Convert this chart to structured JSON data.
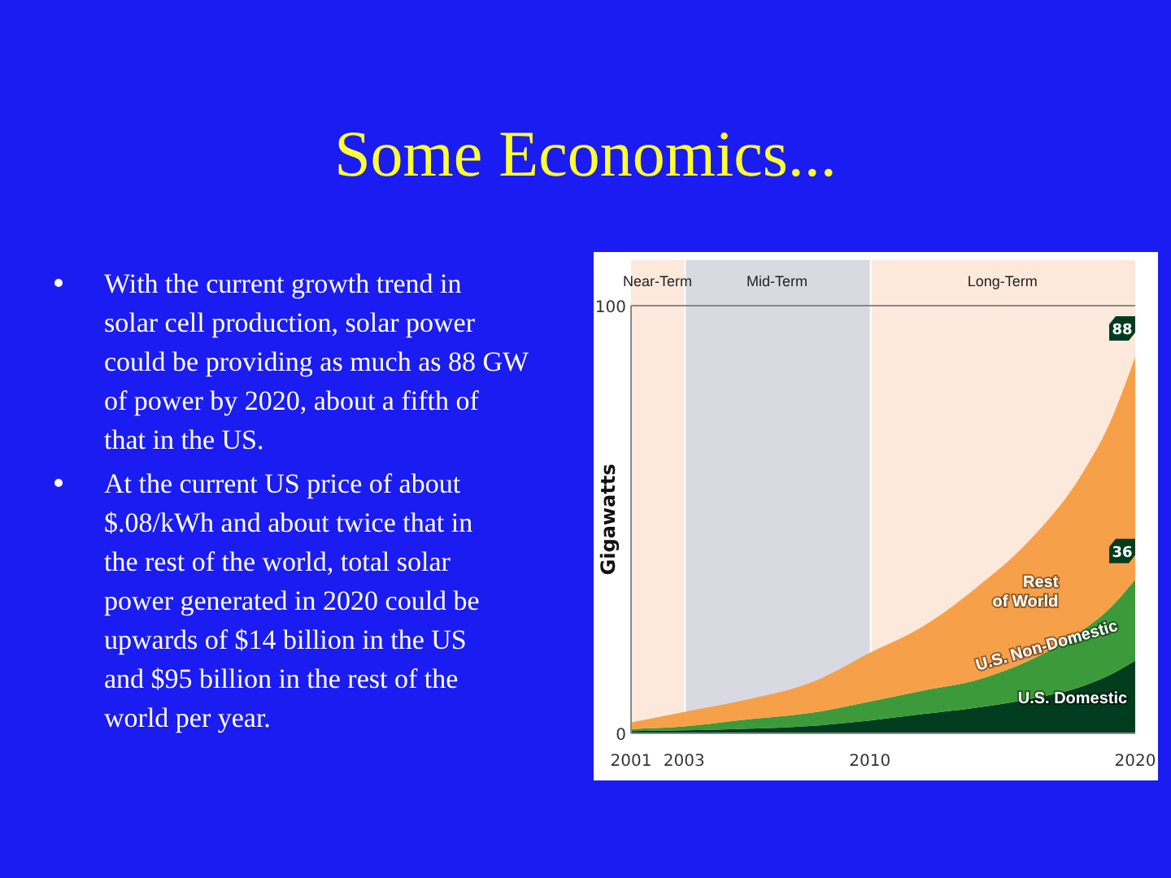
{
  "chart_data": {
    "type": "area",
    "stacked": true,
    "title": "Some Economics...",
    "ylabel": "Gigawatts",
    "x": [
      2001,
      2003,
      2005,
      2008,
      2010,
      2012,
      2014,
      2016,
      2018,
      2019,
      2020
    ],
    "xlim": [
      2001,
      2020
    ],
    "xticks": [
      2001,
      2003,
      2010,
      2020
    ],
    "ylim": [
      0,
      100
    ],
    "yticks": [
      0,
      100
    ],
    "grid": false,
    "legend": false,
    "series": [
      {
        "name": "U.S. Domestic",
        "color": "#003d1f",
        "values": [
          0.5,
          0.7,
          1,
          1.8,
          3,
          4.5,
          6,
          8,
          11,
          13.5,
          17
        ]
      },
      {
        "name": "U.S. Non-Domestic",
        "color": "#3d9a3a",
        "values": [
          0.5,
          0.9,
          2,
          3.2,
          4.4,
          5.5,
          6.4,
          9,
          13,
          15.5,
          19
        ]
      },
      {
        "name": "Rest of World",
        "color": "#f7a04a",
        "values": [
          1.5,
          3.4,
          4.4,
          7.4,
          11.4,
          15,
          21.6,
          28,
          36.7,
          43,
          52
        ]
      }
    ],
    "bands": [
      {
        "axis": "x",
        "from": 2001,
        "to": 2003,
        "label": "Near-Term",
        "color": "#fde8dc"
      },
      {
        "axis": "x",
        "from": 2003,
        "to": 2010,
        "label": "Mid-Term",
        "color": "#d9d9e2"
      },
      {
        "axis": "x",
        "from": 2010,
        "to": 2020,
        "label": "Long-Term",
        "color": "#fde8dc"
      }
    ],
    "annotations": [
      "With the current growth trend in solar cell production, solar power could be providing as much as 88 GW of power by 2020, about a fifth of that in the US.",
      "At the current US price of about $.08/kWh and about twice that in the rest of the world, total solar power generated in 2020 could be upwards of $14 billion in the US and $95 billion in the rest of the world per year.",
      {
        "text": "88",
        "x": 2020,
        "y": 88
      },
      {
        "text": "36",
        "x": 2020,
        "y": 36
      }
    ]
  }
}
